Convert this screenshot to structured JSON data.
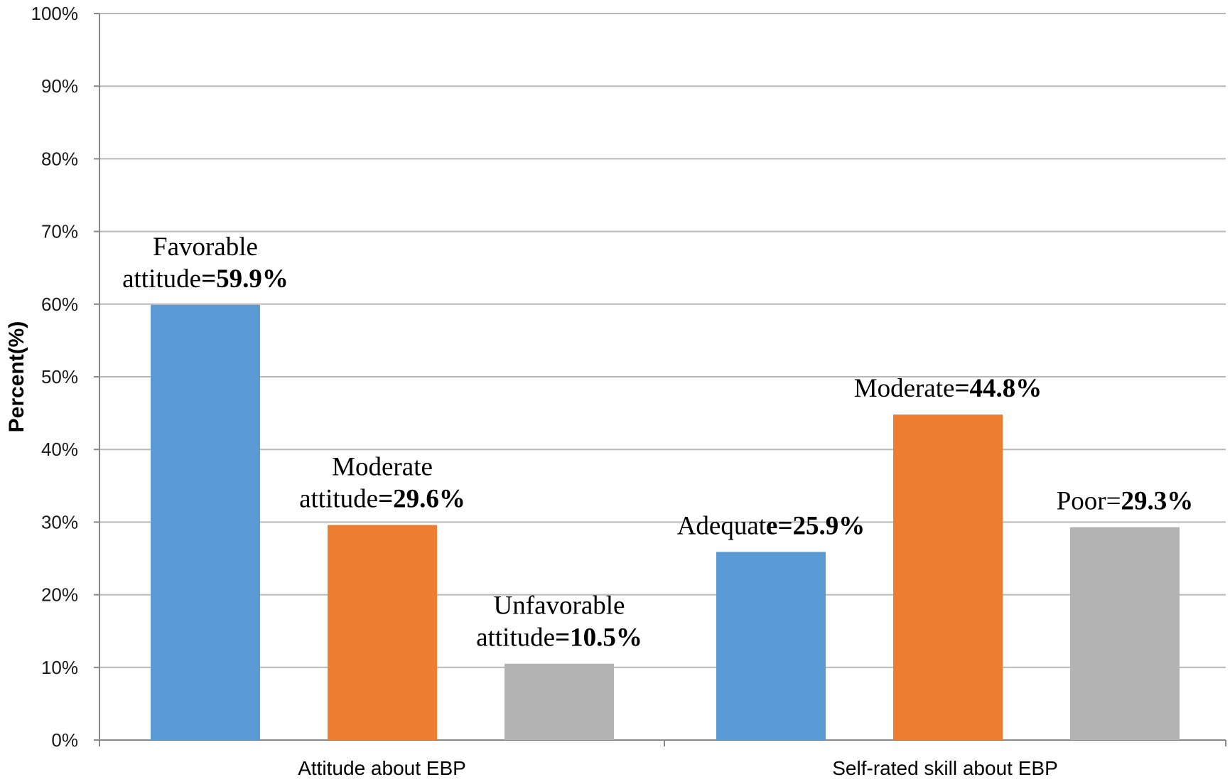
{
  "chart_data": {
    "type": "bar",
    "title": "",
    "xlabel": "",
    "ylabel": "Percent(%)",
    "ylim": [
      0,
      100
    ],
    "yticks": [
      "0%",
      "10%",
      "20%",
      "30%",
      "40%",
      "50%",
      "60%",
      "70%",
      "80%",
      "90%",
      "100%"
    ],
    "grid": true,
    "colors": {
      "blue": "#5b9bd5",
      "orange": "#ed7d31",
      "gray": "#b3b3b3",
      "grid": "#b8b8b8"
    },
    "groups": [
      {
        "name": "Attitude about EBP",
        "bars": [
          {
            "label": "Favorable attitude",
            "value": 59.9,
            "color": "#5b9bd5",
            "label_lines": [
              [
                "Favorable",
                ""
              ],
              [
                "attitude",
                "=59.9%"
              ]
            ]
          },
          {
            "label": "Moderate attitude",
            "value": 29.6,
            "color": "#ed7d31",
            "label_lines": [
              [
                "Moderate",
                ""
              ],
              [
                "attitude",
                "=29.6%"
              ]
            ]
          },
          {
            "label": "Unfavorable attitude",
            "value": 10.5,
            "color": "#b3b3b3",
            "label_lines": [
              [
                "Unfavorable",
                ""
              ],
              [
                "attitude",
                "=10.5%"
              ]
            ]
          }
        ]
      },
      {
        "name": "Self-rated skill about EBP",
        "bars": [
          {
            "label": "Adequate",
            "value": 25.9,
            "color": "#5b9bd5",
            "label_lines": [
              [
                "Adequat",
                "e=25.9%"
              ]
            ]
          },
          {
            "label": "Moderate",
            "value": 44.8,
            "color": "#ed7d31",
            "label_lines": [
              [
                "Moderate",
                "=44.8%"
              ]
            ]
          },
          {
            "label": "Poor",
            "value": 29.3,
            "color": "#b3b3b3",
            "label_lines": [
              [
                "Poor=",
                "29.3%"
              ]
            ]
          }
        ]
      }
    ]
  }
}
